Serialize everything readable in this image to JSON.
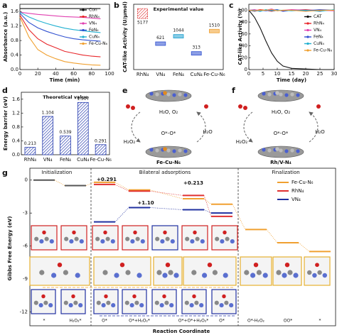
{
  "panel_labels": [
    "a",
    "b",
    "c",
    "d",
    "e",
    "f",
    "g"
  ],
  "chart_data": [
    {
      "type": "line",
      "xlabel": "Time (min)",
      "ylabel": "Absorbance (a.u.)",
      "x": [
        0,
        10,
        20,
        30,
        40,
        50,
        60,
        70,
        80,
        90
      ],
      "xlim": [
        0,
        100
      ],
      "xticks": [
        0,
        20,
        40,
        60,
        80,
        100
      ],
      "ylim": [
        0,
        1.8
      ],
      "yticks": [
        {
          "value": 0,
          "label": "0.0"
        },
        {
          "value": 0.4,
          "label": "0.4"
        },
        {
          "value": 0.8,
          "label": "0.8"
        },
        {
          "value": 1.2,
          "label": "1.2"
        },
        {
          "value": 1.6,
          "label": "1.6"
        }
      ],
      "legend": "upper right",
      "series": [
        {
          "name": "Con",
          "color": "#111111",
          "values": [
            1.68,
            1.68,
            1.68,
            1.68,
            1.68,
            1.68,
            1.68,
            1.68,
            1.68,
            1.68
          ]
        },
        {
          "name": "RhN₄",
          "color": "#e8262a",
          "values": [
            1.5,
            1.1,
            0.85,
            0.7,
            0.6,
            0.5,
            0.45,
            0.4,
            0.37,
            0.35
          ]
        },
        {
          "name": "VN₄",
          "color": "#e040b0",
          "values": [
            1.58,
            1.55,
            1.52,
            1.5,
            1.48,
            1.46,
            1.45,
            1.44,
            1.42,
            1.4
          ]
        },
        {
          "name": "FeN₄",
          "color": "#3050d0",
          "values": [
            1.55,
            1.3,
            1.15,
            1.05,
            0.97,
            0.9,
            0.85,
            0.82,
            0.8,
            0.78
          ]
        },
        {
          "name": "CuN₄",
          "color": "#20b0d0",
          "values": [
            1.58,
            1.45,
            1.35,
            1.27,
            1.2,
            1.14,
            1.1,
            1.07,
            1.04,
            1.02
          ]
        },
        {
          "name": "Fe-Cu-N₆",
          "color": "#f0a030",
          "values": [
            1.45,
            0.9,
            0.55,
            0.4,
            0.3,
            0.22,
            0.18,
            0.15,
            0.13,
            0.12
          ]
        }
      ]
    },
    {
      "type": "box",
      "title": "Experimental value",
      "ylabel": "CAT-like Activity (U/μmol)",
      "categories": [
        "RhN₄",
        "VN₄",
        "FeN₄",
        "CuN₄",
        "Fe-Cu-N₆"
      ],
      "values": [
        5177,
        621,
        1044,
        313,
        1510
      ],
      "colors": [
        "#e03030",
        "#3050d0",
        "#20a0d0",
        "#3050d0",
        "#f0a030"
      ],
      "log": true,
      "ylim": [
        100,
        10000
      ]
    },
    {
      "type": "line",
      "xlabel": "Time (day)",
      "ylabel": "CAT-like Activity (%)",
      "x": [
        0,
        2,
        4,
        6,
        8,
        10,
        12,
        15,
        20,
        25,
        30
      ],
      "xlim": [
        0,
        30
      ],
      "xticks": [
        0,
        5,
        10,
        15,
        20,
        25,
        30
      ],
      "ylim": [
        0,
        110
      ],
      "yticks": [
        0,
        20,
        40,
        60,
        80,
        100
      ],
      "legend": "center right",
      "series": [
        {
          "name": "CAT",
          "color": "#111111",
          "values": [
            100,
            88,
            70,
            48,
            28,
            14,
            6,
            2,
            1,
            0,
            0
          ]
        },
        {
          "name": "RhN₄",
          "color": "#e8262a",
          "values": [
            100,
            99,
            101,
            100,
            98,
            100,
            99,
            100,
            101,
            99,
            100
          ]
        },
        {
          "name": "VN₄",
          "color": "#e040b0",
          "values": [
            100,
            101,
            99,
            100,
            102,
            99,
            100,
            101,
            100,
            100,
            99
          ]
        },
        {
          "name": "FeN₄",
          "color": "#3050d0",
          "values": [
            100,
            98,
            100,
            99,
            100,
            101,
            98,
            100,
            99,
            101,
            100
          ]
        },
        {
          "name": "CuN₄",
          "color": "#20b0d0",
          "values": [
            100,
            100,
            98,
            101,
            99,
            100,
            100,
            99,
            100,
            98,
            101
          ]
        },
        {
          "name": "Fe-Cu-N₆",
          "color": "#f0a030",
          "values": [
            100,
            99,
            100,
            100,
            101,
            99,
            100,
            100,
            98,
            100,
            100
          ]
        }
      ]
    },
    {
      "type": "bar",
      "title": "Theoretical value",
      "ylabel": "Energy barrier (eV)",
      "categories": [
        "RhN₄",
        "VN₄",
        "FeN₄",
        "CuN₄",
        "Fe-Cu-N₆"
      ],
      "values": [
        0.213,
        1.104,
        0.539,
        1.507,
        0.291
      ],
      "color": "#2a3fb0",
      "ylim": [
        0,
        1.8
      ],
      "yticks": [
        {
          "value": 0,
          "label": "0.0"
        },
        {
          "value": 0.4,
          "label": "0.4"
        },
        {
          "value": 0.8,
          "label": "0.8"
        },
        {
          "value": 1.2,
          "label": "1.2"
        },
        {
          "value": 1.6,
          "label": "1.6"
        }
      ]
    },
    {
      "type": "energy",
      "ylabel": "Gibbs Free Energy (eV)",
      "xlabel": "Reaction Coordinate",
      "sections": [
        "Initialization",
        "Bilateral adsorptions",
        "Finalization"
      ],
      "categories": [
        "*",
        "H₂O₂*",
        "O*",
        "O*+H₂O₂*",
        "O*+O*+H₂O₂*",
        "O*",
        "O*-H₂O₂",
        "OO*",
        "*"
      ],
      "ylim": [
        -13,
        0.5
      ],
      "yticks": [
        0,
        -3,
        -6,
        -9,
        -12
      ],
      "legend": "upper right",
      "series": [
        {
          "name": "Fe-Cu-N₆",
          "color": "#f0a030",
          "values": [
            0,
            -0.5,
            -0.2,
            -0.9,
            -1.7,
            -2.2,
            -4.5,
            -5.7,
            -6.5
          ]
        },
        {
          "name": "RhN₄",
          "color": "#e03030",
          "values": [
            null,
            null,
            -0.4,
            -1.0,
            -1.4,
            -3.3,
            null,
            null,
            null
          ]
        },
        {
          "name": "VN₄",
          "color": "#2030a0",
          "values": [
            null,
            null,
            -3.8,
            -2.5,
            -2.7,
            -3.0,
            null,
            null,
            null
          ]
        }
      ],
      "annotations": [
        {
          "text": "+0.291",
          "color": "#f0a030"
        },
        {
          "text": "+0.213",
          "color": "#e03030"
        },
        {
          "text": "+1.10",
          "color": "#2030a0"
        }
      ]
    }
  ],
  "diagrams": [
    {
      "labels": [
        "H₂O, O₂",
        "O*-O*",
        "H₂O",
        "H₂O₂"
      ],
      "catalyst": "Fe-Cu-N₆"
    },
    {
      "labels": [
        "H₂O, O₂",
        "O*-O*",
        "H₂O",
        "H₂O₂"
      ],
      "catalyst": "Rh/V-N₄"
    }
  ]
}
